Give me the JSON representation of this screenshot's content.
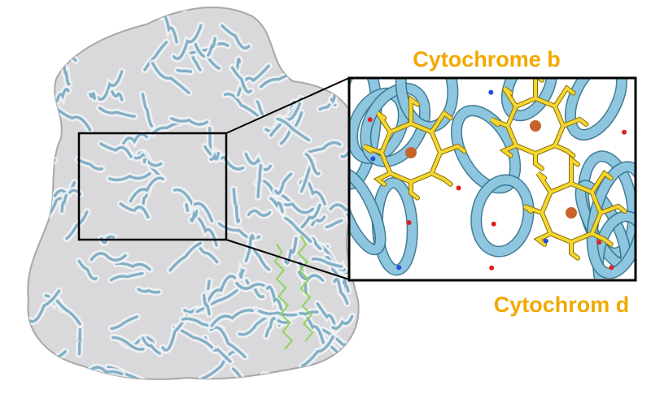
{
  "labels": {
    "top": "Cytochrome b",
    "bottom": "Cytochrom d"
  }
}
